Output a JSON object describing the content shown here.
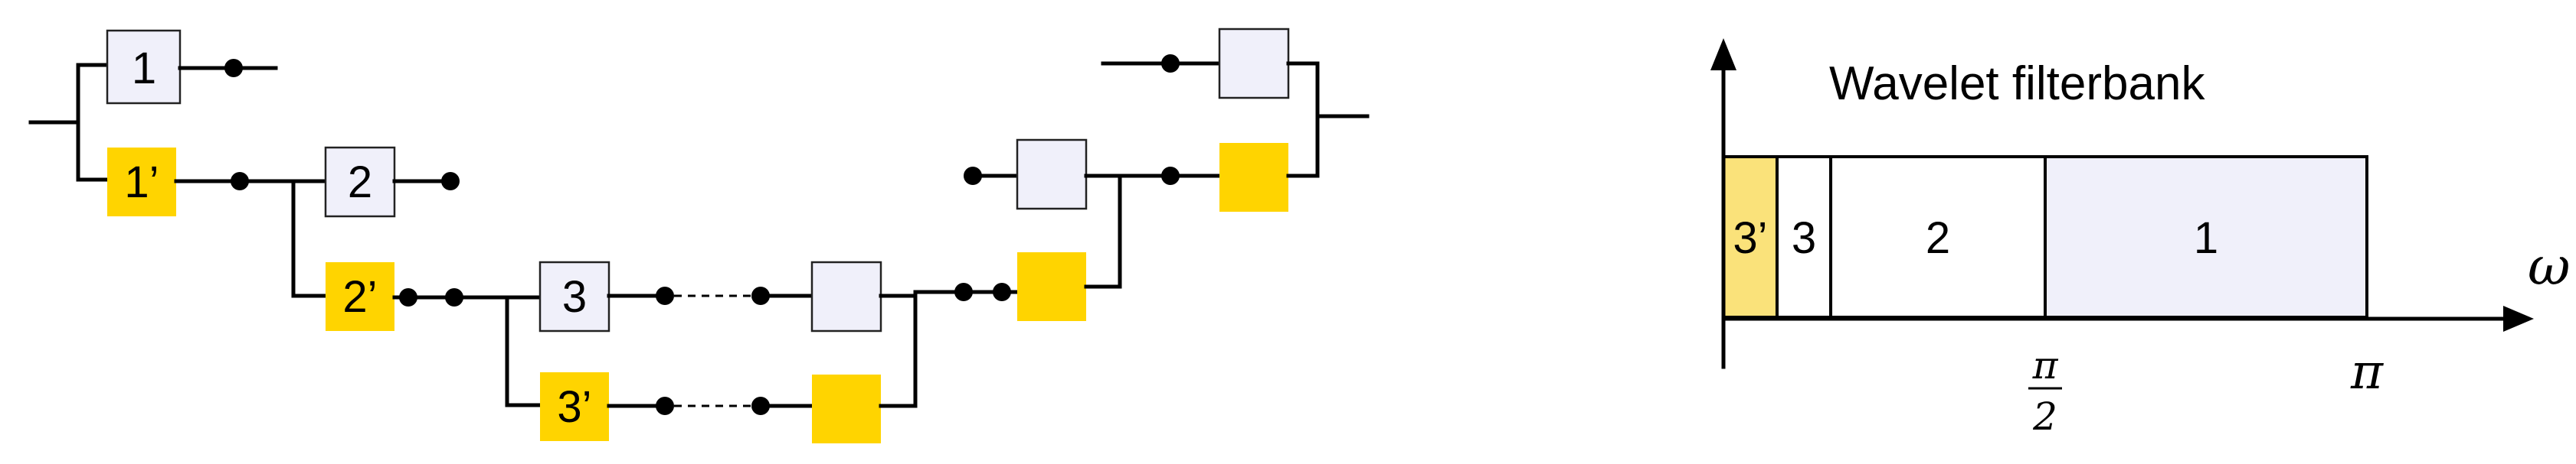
{
  "diagram": {
    "tree_labels": {
      "hp1": "1",
      "lp1": "1’",
      "hp2": "2",
      "lp2": "2’",
      "hp3": "3",
      "lp3": "3’"
    },
    "colors": {
      "highpass_box": "#f0f0fa",
      "lowpass_box": "#ffd400",
      "wire": "#000000"
    }
  },
  "spectrum": {
    "title": "Wavelet filterbank",
    "axis_label": "ω",
    "ticks": {
      "half_pi_numerator": "π",
      "half_pi_denominator": "2",
      "pi": "π"
    },
    "bands": [
      {
        "label": "3’",
        "from": 0,
        "to": 0.0833,
        "color": "#fae27a"
      },
      {
        "label": "3",
        "from": 0.0833,
        "to": 0.1667,
        "color": "#ffffff"
      },
      {
        "label": "2",
        "from": 0.1667,
        "to": 0.5,
        "color": "#ffffff"
      },
      {
        "label": "1",
        "from": 0.5,
        "to": 1.0,
        "color": "#f0f0fa"
      }
    ],
    "range_units": "pi"
  }
}
